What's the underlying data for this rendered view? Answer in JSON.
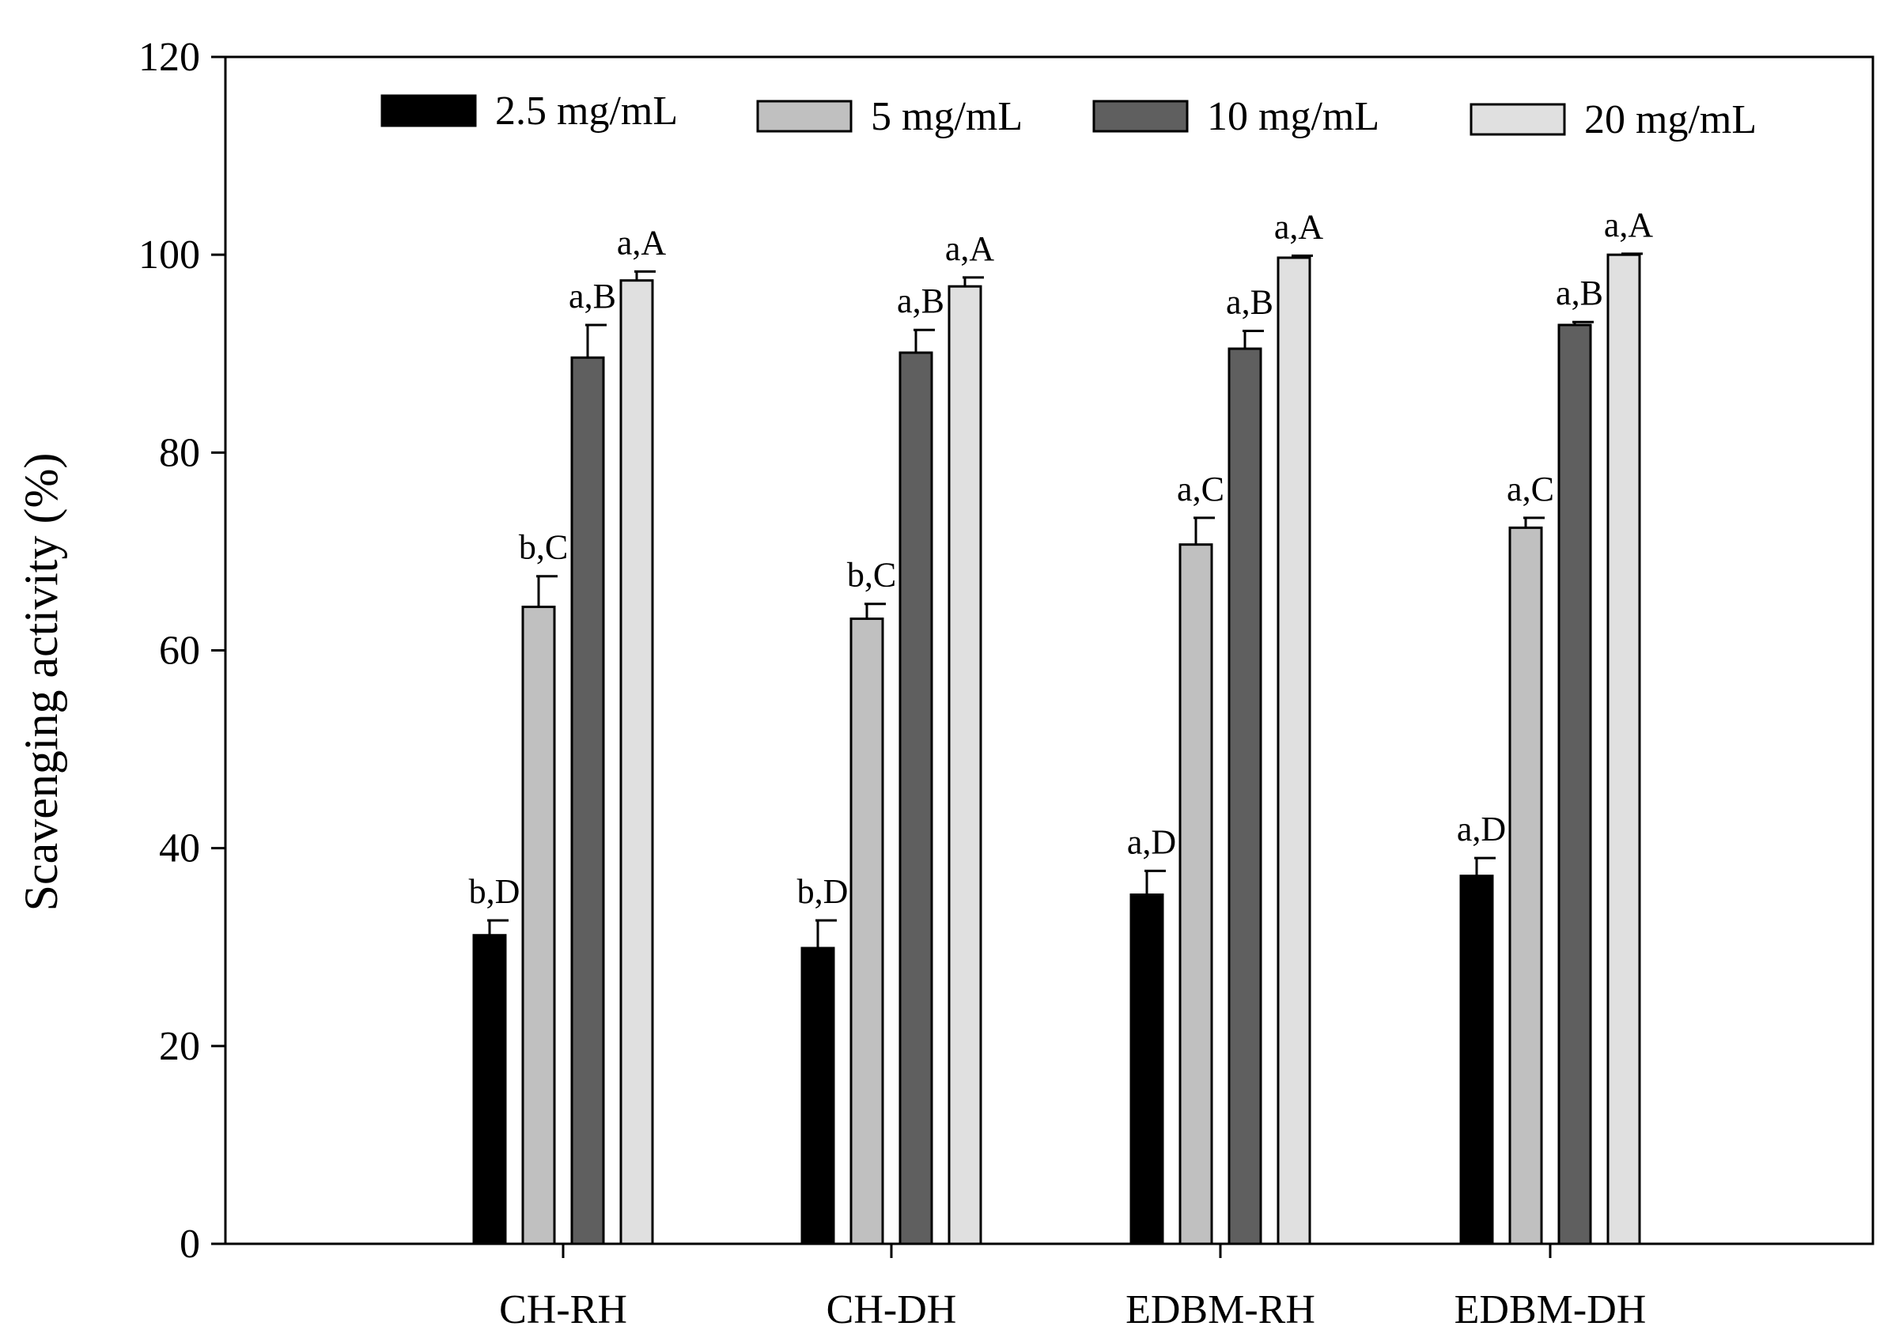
{
  "chart_data": {
    "type": "bar",
    "title": "",
    "xlabel": "",
    "ylabel": "Scavenging activity (%)",
    "ylim": [
      0,
      120
    ],
    "yticks": [
      0,
      20,
      40,
      60,
      80,
      100,
      120
    ],
    "grid": false,
    "legend_position": "top",
    "categories": [
      "CH-RH",
      "CH-DH",
      "EDBM-RH",
      "EDBM-DH"
    ],
    "series": [
      {
        "name": "2.5 mg/mL",
        "color": "#000000",
        "values": [
          31.2,
          29.9,
          35.3,
          37.2
        ],
        "errors": [
          1.5,
          2.8,
          2.4,
          1.8
        ],
        "labels": [
          "b,D",
          "b,D",
          "a,D",
          "a,D"
        ]
      },
      {
        "name": "5 mg/mL",
        "color": "#c0c0c0",
        "values": [
          64.4,
          63.2,
          70.7,
          72.4
        ],
        "errors": [
          3.1,
          1.5,
          2.7,
          1.0
        ],
        "labels": [
          "b,C",
          "b,C",
          "a,C",
          "a,C"
        ]
      },
      {
        "name": "10 mg/mL",
        "color": "#5f5f5f",
        "values": [
          89.6,
          90.1,
          90.5,
          92.9
        ],
        "errors": [
          3.3,
          2.3,
          1.8,
          0.3
        ],
        "labels": [
          "a,B",
          "a,B",
          "a,B",
          "a,B"
        ]
      },
      {
        "name": "20 mg/mL",
        "color": "#e0e0e0",
        "values": [
          97.4,
          96.8,
          99.7,
          100.0
        ],
        "errors": [
          0.9,
          0.9,
          0.2,
          0.1
        ],
        "labels": [
          "a,A",
          "a,A",
          "a,A",
          "a,A"
        ]
      }
    ]
  }
}
